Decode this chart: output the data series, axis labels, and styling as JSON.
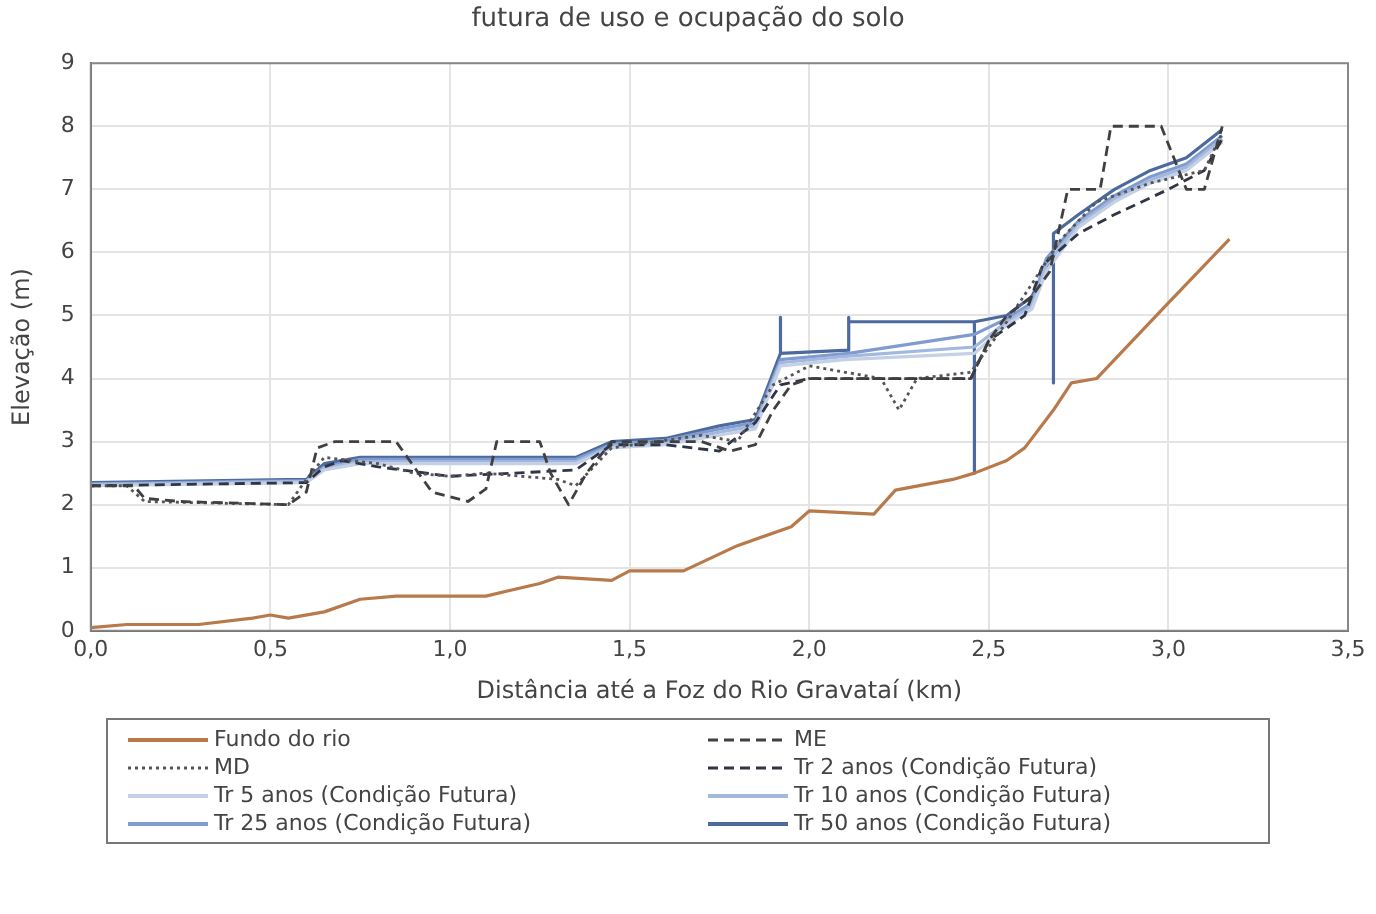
{
  "chart_data": {
    "type": "line",
    "title": "futura de uso e ocupação do solo",
    "xlabel": "Distância até a Foz do Rio Gravataí (km)",
    "ylabel": "Elevação (m)",
    "xlim": [
      0,
      3.5
    ],
    "xticks": [
      {
        "value": 0,
        "label": "0,0"
      },
      {
        "value": 0.5,
        "label": "0,5"
      },
      {
        "value": 1,
        "label": "1,0"
      },
      {
        "value": 1.5,
        "label": "1,5"
      },
      {
        "value": 2,
        "label": "2,0"
      },
      {
        "value": 2.5,
        "label": "2,5"
      },
      {
        "value": 3,
        "label": "3,0"
      },
      {
        "value": 3.5,
        "label": "3,5"
      }
    ],
    "ylim": [
      0,
      9
    ],
    "yticks": [
      0,
      1,
      2,
      3,
      4,
      5,
      6,
      7,
      8,
      9
    ],
    "grid": true,
    "legend": "bottom",
    "marker": "none",
    "series": [
      {
        "name": "Fundo do rio",
        "color": "#b87a4b",
        "line_style": "solid",
        "x": [
          0,
          0.1,
          0.3,
          0.45,
          0.5,
          0.55,
          0.65,
          0.75,
          0.85,
          1.1,
          1.25,
          1.3,
          1.45,
          1.5,
          1.65,
          1.8,
          1.95,
          2.0,
          2.18,
          2.24,
          2.4,
          2.46,
          2.55,
          2.6,
          2.68,
          2.73,
          2.8,
          3.0,
          3.17
        ],
        "values": [
          0.05,
          0.1,
          0.1,
          0.2,
          0.25,
          0.2,
          0.3,
          0.5,
          0.55,
          0.55,
          0.75,
          0.85,
          0.8,
          0.95,
          0.95,
          1.35,
          1.65,
          1.9,
          1.85,
          2.23,
          2.4,
          2.5,
          2.7,
          2.9,
          3.5,
          3.93,
          4.0,
          5.2,
          6.21
        ]
      },
      {
        "name": "ME",
        "color": "#404040",
        "line_style": "dashed",
        "x": [
          0,
          0.12,
          0.15,
          0.25,
          0.55,
          0.6,
          0.63,
          0.68,
          0.85,
          0.9,
          0.95,
          1.05,
          1.1,
          1.13,
          1.25,
          1.28,
          1.33,
          1.38,
          1.45,
          1.7,
          1.78,
          1.85,
          1.9,
          1.95,
          2.0,
          2.45,
          2.5,
          2.55,
          2.62,
          2.67,
          2.72,
          2.81,
          2.84,
          2.98,
          3.05,
          3.1,
          3.15
        ],
        "values": [
          2.3,
          2.3,
          2.1,
          2.05,
          2.0,
          2.2,
          2.9,
          3.0,
          3.0,
          2.6,
          2.2,
          2.05,
          2.25,
          3.0,
          3.0,
          2.5,
          2.0,
          2.5,
          3.0,
          3.0,
          2.85,
          2.95,
          3.5,
          3.9,
          4.0,
          4.0,
          4.6,
          5.0,
          5.3,
          5.7,
          7.0,
          7.0,
          8.0,
          8.0,
          7.0,
          7.0,
          8.0
        ]
      },
      {
        "name": "MD",
        "color": "#555555",
        "line_style": "dotted",
        "x": [
          0,
          0.1,
          0.15,
          0.55,
          0.6,
          0.65,
          0.8,
          0.9,
          1.0,
          1.1,
          1.2,
          1.3,
          1.35,
          1.45,
          1.7,
          1.8,
          1.9,
          2.0,
          2.2,
          2.25,
          2.3,
          2.45,
          2.55,
          2.62,
          2.7,
          2.8,
          2.95,
          3.1,
          3.15
        ],
        "values": [
          2.3,
          2.3,
          2.05,
          2.0,
          2.4,
          2.75,
          2.65,
          2.5,
          2.45,
          2.5,
          2.45,
          2.4,
          2.3,
          2.9,
          3.1,
          3.0,
          3.9,
          4.2,
          4.0,
          3.5,
          4.0,
          4.1,
          4.9,
          5.5,
          6.2,
          6.8,
          7.1,
          7.3,
          7.9
        ]
      },
      {
        "name": "Tr 2 anos (Condição Futura)",
        "color": "#2f3545",
        "line_style": "dashed",
        "x": [
          0,
          0.6,
          0.65,
          0.7,
          0.8,
          1.0,
          1.35,
          1.45,
          1.6,
          1.75,
          1.85,
          1.92,
          2.0,
          2.45,
          2.5,
          2.6,
          2.65,
          2.75,
          2.85,
          3.0,
          3.1,
          3.15
        ],
        "values": [
          2.3,
          2.35,
          2.6,
          2.7,
          2.6,
          2.45,
          2.55,
          2.95,
          2.95,
          2.85,
          3.3,
          3.9,
          4.0,
          4.0,
          4.6,
          5.0,
          5.8,
          6.3,
          6.6,
          7.0,
          7.3,
          7.8
        ]
      },
      {
        "name": "Tr 5 anos (Condição Futura)",
        "color": "#c3d0e6",
        "line_style": "solid",
        "x": [
          0,
          0.6,
          0.65,
          0.75,
          1.35,
          1.45,
          1.6,
          1.75,
          1.85,
          1.92,
          2.1,
          2.46,
          2.55,
          2.62,
          2.66,
          2.75,
          2.85,
          2.95,
          3.05,
          3.15
        ],
        "values": [
          2.3,
          2.35,
          2.55,
          2.65,
          2.65,
          2.9,
          2.95,
          3.1,
          3.2,
          4.2,
          4.3,
          4.4,
          4.85,
          5.1,
          5.7,
          6.4,
          6.8,
          7.1,
          7.3,
          7.75
        ]
      },
      {
        "name": "Tr 10 anos (Condição Futura)",
        "color": "#a3b8de",
        "line_style": "solid",
        "x": [
          0,
          0.6,
          0.65,
          0.75,
          1.35,
          1.45,
          1.6,
          1.75,
          1.85,
          1.92,
          2.1,
          2.46,
          2.55,
          2.62,
          2.66,
          2.75,
          2.85,
          2.95,
          3.05,
          3.15
        ],
        "values": [
          2.32,
          2.37,
          2.58,
          2.68,
          2.68,
          2.93,
          2.98,
          3.15,
          3.25,
          4.25,
          4.35,
          4.5,
          4.9,
          5.15,
          5.8,
          6.45,
          6.85,
          7.15,
          7.35,
          7.8
        ]
      },
      {
        "name": "Tr 25 anos (Condição Futura)",
        "color": "#7f9bcf",
        "line_style": "solid",
        "x": [
          0,
          0.6,
          0.65,
          0.75,
          1.35,
          1.45,
          1.6,
          1.75,
          1.85,
          1.92,
          2.11,
          2.46,
          2.55,
          2.62,
          2.66,
          2.75,
          2.85,
          2.95,
          3.05,
          3.15
        ],
        "values": [
          2.33,
          2.38,
          2.6,
          2.72,
          2.72,
          2.96,
          3.02,
          3.2,
          3.3,
          4.3,
          4.4,
          4.7,
          4.95,
          5.2,
          5.9,
          6.5,
          6.9,
          7.2,
          7.4,
          7.85
        ]
      },
      {
        "name": "Tr 50 anos (Condição Futura)",
        "color": "#4c6a9e",
        "line_style": "solid",
        "x": [
          0,
          0.6,
          0.65,
          0.75,
          1.35,
          1.45,
          1.6,
          1.75,
          1.85,
          1.92,
          1.92,
          1.92,
          2.11,
          2.11,
          2.11,
          2.46,
          2.46,
          2.46,
          2.55,
          2.62,
          2.68,
          2.68,
          2.68,
          2.75,
          2.85,
          2.95,
          3.05,
          3.15
        ],
        "values": [
          2.35,
          2.4,
          2.65,
          2.75,
          2.75,
          3.0,
          3.05,
          3.25,
          3.35,
          4.4,
          4.97,
          4.4,
          4.45,
          4.97,
          4.9,
          4.9,
          2.5,
          4.9,
          5.0,
          5.3,
          6.0,
          3.93,
          6.3,
          6.6,
          7.0,
          7.3,
          7.5,
          7.95
        ]
      }
    ]
  }
}
